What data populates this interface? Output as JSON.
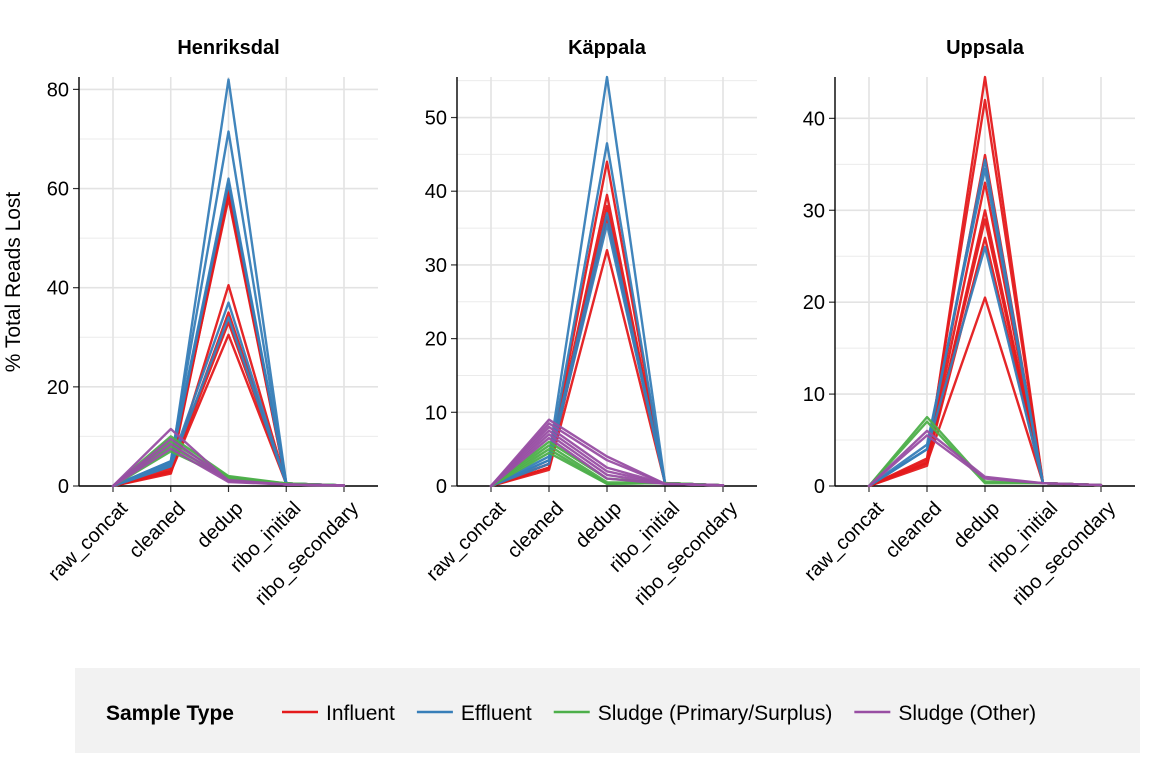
{
  "chart_data": {
    "type": "line",
    "ylabel": "% Total Reads Lost",
    "categories": [
      "raw_concat",
      "cleaned",
      "dedup",
      "ribo_initial",
      "ribo_secondary"
    ],
    "legend": {
      "title": "Sample Type",
      "position": "bottom",
      "entries": [
        {
          "key": "influent",
          "label": "Influent",
          "color": "#E41A1C"
        },
        {
          "key": "effluent",
          "label": "Effluent",
          "color": "#377EB8"
        },
        {
          "key": "sludge_primary",
          "label": "Sludge (Primary/Surplus)",
          "color": "#4DAF4A"
        },
        {
          "key": "sludge_other",
          "label": "Sludge (Other)",
          "color": "#984EA3"
        }
      ]
    },
    "grid": true,
    "panels": [
      {
        "title": "Henriksdal",
        "ylim": [
          0,
          82.5
        ],
        "yticks": [
          0,
          20,
          40,
          60,
          80
        ],
        "series": [
          {
            "type": "influent",
            "values": [
              0,
              3,
              59,
              0.5,
              0.1
            ]
          },
          {
            "type": "influent",
            "values": [
              0,
              3.5,
              60,
              0.5,
              0.1
            ]
          },
          {
            "type": "influent",
            "values": [
              0,
              4,
              58,
              0.5,
              0.1
            ]
          },
          {
            "type": "influent",
            "values": [
              0,
              2.5,
              40.5,
              0.4,
              0.1
            ]
          },
          {
            "type": "influent",
            "values": [
              0,
              3,
              35,
              0.4,
              0.1
            ]
          },
          {
            "type": "influent",
            "values": [
              0,
              3,
              33,
              0.4,
              0.1
            ]
          },
          {
            "type": "influent",
            "values": [
              0,
              2.8,
              30.5,
              0.4,
              0.1
            ]
          },
          {
            "type": "effluent",
            "values": [
              0,
              4,
              82,
              0.5,
              0.1
            ]
          },
          {
            "type": "effluent",
            "values": [
              0,
              5,
              71.5,
              0.5,
              0.1
            ]
          },
          {
            "type": "effluent",
            "values": [
              0,
              5,
              62,
              0.5,
              0.1
            ]
          },
          {
            "type": "effluent",
            "values": [
              0,
              4.5,
              61,
              0.5,
              0.1
            ]
          },
          {
            "type": "effluent",
            "values": [
              0,
              4.5,
              37,
              0.4,
              0.1
            ]
          },
          {
            "type": "effluent",
            "values": [
              0,
              4,
              34,
              0.4,
              0.1
            ]
          },
          {
            "type": "sludge_primary",
            "values": [
              0,
              10,
              2,
              0.5,
              0.1
            ]
          },
          {
            "type": "sludge_primary",
            "values": [
              0,
              9,
              1.8,
              0.5,
              0.1
            ]
          },
          {
            "type": "sludge_primary",
            "values": [
              0,
              8,
              1.5,
              0.5,
              0.1
            ]
          },
          {
            "type": "sludge_primary",
            "values": [
              0,
              7,
              1.5,
              0.4,
              0.1
            ]
          },
          {
            "type": "sludge_other",
            "values": [
              0,
              11.5,
              1,
              0.3,
              0.1
            ]
          },
          {
            "type": "sludge_other",
            "values": [
              0,
              9.5,
              1.2,
              0.3,
              0.1
            ]
          },
          {
            "type": "sludge_other",
            "values": [
              0,
              8.5,
              1,
              0.3,
              0.1
            ]
          },
          {
            "type": "sludge_other",
            "values": [
              0,
              7.5,
              0.8,
              0.3,
              0.1
            ]
          }
        ]
      },
      {
        "title": "Käppala",
        "ylim": [
          0,
          55.5
        ],
        "yticks": [
          0,
          10,
          20,
          30,
          40,
          50
        ],
        "series": [
          {
            "type": "influent",
            "values": [
              0,
              3,
              44,
              0.4,
              0.1
            ]
          },
          {
            "type": "influent",
            "values": [
              0,
              3,
              39.5,
              0.4,
              0.1
            ]
          },
          {
            "type": "influent",
            "values": [
              0,
              2.5,
              38,
              0.4,
              0.1
            ]
          },
          {
            "type": "influent",
            "values": [
              0,
              2.5,
              36.5,
              0.4,
              0.1
            ]
          },
          {
            "type": "influent",
            "values": [
              0,
              2.2,
              32,
              0.4,
              0.1
            ]
          },
          {
            "type": "effluent",
            "values": [
              0,
              4,
              55.5,
              0.4,
              0.1
            ]
          },
          {
            "type": "effluent",
            "values": [
              0,
              3.5,
              46.5,
              0.4,
              0.1
            ]
          },
          {
            "type": "effluent",
            "values": [
              0,
              3.5,
              37,
              0.4,
              0.1
            ]
          },
          {
            "type": "effluent",
            "values": [
              0,
              3,
              35.5,
              0.4,
              0.1
            ]
          },
          {
            "type": "sludge_primary",
            "values": [
              0,
              6,
              1,
              0.4,
              0.1
            ]
          },
          {
            "type": "sludge_primary",
            "values": [
              0,
              5.5,
              0.5,
              0.4,
              0.1
            ]
          },
          {
            "type": "sludge_primary",
            "values": [
              0,
              5,
              0.3,
              0.4,
              0.1
            ]
          },
          {
            "type": "sludge_primary",
            "values": [
              0,
              4.5,
              0.3,
              0.4,
              0.1
            ]
          },
          {
            "type": "sludge_other",
            "values": [
              0,
              9,
              4,
              0.3,
              0.1
            ]
          },
          {
            "type": "sludge_other",
            "values": [
              0,
              8.5,
              3.5,
              0.3,
              0.1
            ]
          },
          {
            "type": "sludge_other",
            "values": [
              0,
              8,
              2.5,
              0.3,
              0.1
            ]
          },
          {
            "type": "sludge_other",
            "values": [
              0,
              7.5,
              2,
              0.3,
              0.1
            ]
          },
          {
            "type": "sludge_other",
            "values": [
              0,
              7,
              1.5,
              0.3,
              0.1
            ]
          },
          {
            "type": "sludge_other",
            "values": [
              0,
              6.5,
              1,
              0.3,
              0.1
            ]
          }
        ]
      },
      {
        "title": "Uppsala",
        "ylim": [
          0,
          44.5
        ],
        "yticks": [
          0,
          10,
          20,
          30,
          40
        ],
        "series": [
          {
            "type": "influent",
            "values": [
              0,
              2.5,
              44.5,
              0.3,
              0.1
            ]
          },
          {
            "type": "influent",
            "values": [
              0,
              3,
              42,
              0.3,
              0.1
            ]
          },
          {
            "type": "influent",
            "values": [
              0,
              2.8,
              36,
              0.3,
              0.1
            ]
          },
          {
            "type": "influent",
            "values": [
              0,
              2.5,
              33,
              0.3,
              0.1
            ]
          },
          {
            "type": "influent",
            "values": [
              0,
              2.2,
              30,
              0.3,
              0.1
            ]
          },
          {
            "type": "influent",
            "values": [
              0,
              2.5,
              29,
              0.3,
              0.1
            ]
          },
          {
            "type": "influent",
            "values": [
              0,
              2.5,
              27,
              0.3,
              0.1
            ]
          },
          {
            "type": "influent",
            "values": [
              0,
              2.5,
              20.5,
              0.3,
              0.1
            ]
          },
          {
            "type": "effluent",
            "values": [
              0,
              4,
              35.5,
              0.3,
              0.1
            ]
          },
          {
            "type": "effluent",
            "values": [
              0,
              4.5,
              34.5,
              0.3,
              0.1
            ]
          },
          {
            "type": "effluent",
            "values": [
              0,
              4,
              26,
              0.3,
              0.1
            ]
          },
          {
            "type": "sludge_primary",
            "values": [
              0,
              7.5,
              0.5,
              0.3,
              0.1
            ]
          },
          {
            "type": "sludge_primary",
            "values": [
              0,
              7,
              0.3,
              0.3,
              0.1
            ]
          },
          {
            "type": "sludge_other",
            "values": [
              0,
              6,
              1,
              0.3,
              0.1
            ]
          },
          {
            "type": "sludge_other",
            "values": [
              0,
              5.5,
              0.8,
              0.3,
              0.1
            ]
          }
        ]
      }
    ]
  }
}
